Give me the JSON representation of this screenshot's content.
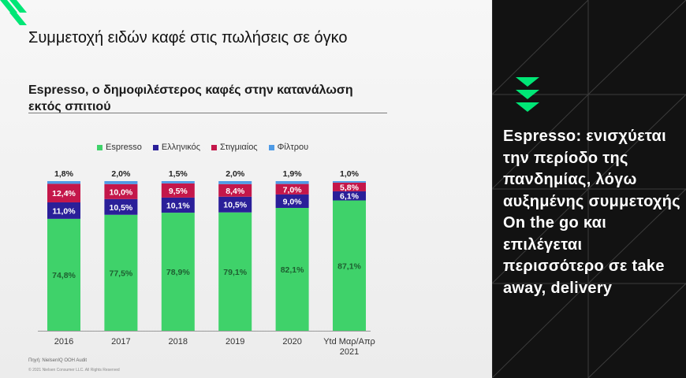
{
  "title": "Συμμετοχή ειδών καφέ στις πωλήσεις σε όγκο",
  "subtitle": "Espresso, ο δημοφιλέστερος καφές στην κατανάλωση εκτός σπιτιού",
  "source": "Πηγή: NielsenIQ OOH Audit",
  "copyright": "© 2021 Nielsen Consumer LLC. All Rights Reserved",
  "side_text": "Espresso: ενισχύεται την περίοδο της πανδημίας, λόγω αυξημένης συμμετοχής On the go και επιλέγεται περισσότερο σε take away, delivery",
  "colors": {
    "accent": "#00e676",
    "panel": "#121212"
  },
  "chart_data": {
    "type": "bar",
    "stacked": true,
    "categories": [
      "2016",
      "2017",
      "2018",
      "2019",
      "2020",
      "Ytd Μαρ/Απρ 2021"
    ],
    "series": [
      {
        "name": "Espresso",
        "color": "#3fd26a",
        "values": [
          74.8,
          77.5,
          78.9,
          79.1,
          82.1,
          87.1
        ],
        "labels": [
          "74,8%",
          "77,5%",
          "78,9%",
          "79,1%",
          "82,1%",
          "87,1%"
        ]
      },
      {
        "name": "Ελληνικός",
        "color": "#2a1f99",
        "values": [
          11.0,
          10.5,
          10.1,
          10.5,
          9.0,
          6.1
        ],
        "labels": [
          "11,0%",
          "10,5%",
          "10,1%",
          "10,5%",
          "9,0%",
          "6,1%"
        ]
      },
      {
        "name": "Στιγμιαίος",
        "color": "#c4174a",
        "values": [
          12.4,
          10.0,
          9.5,
          8.4,
          7.0,
          5.8
        ],
        "labels": [
          "12,4%",
          "10,0%",
          "9,5%",
          "8,4%",
          "7,0%",
          "5,8%"
        ]
      },
      {
        "name": "Φίλτρου",
        "color": "#4f9be6",
        "values": [
          1.8,
          2.0,
          1.5,
          2.0,
          1.9,
          1.0
        ],
        "labels": [
          "1,8%",
          "2,0%",
          "1,5%",
          "2,0%",
          "1,9%",
          "1,0%"
        ]
      }
    ],
    "ylim": [
      0,
      100
    ],
    "legend_position": "top"
  }
}
